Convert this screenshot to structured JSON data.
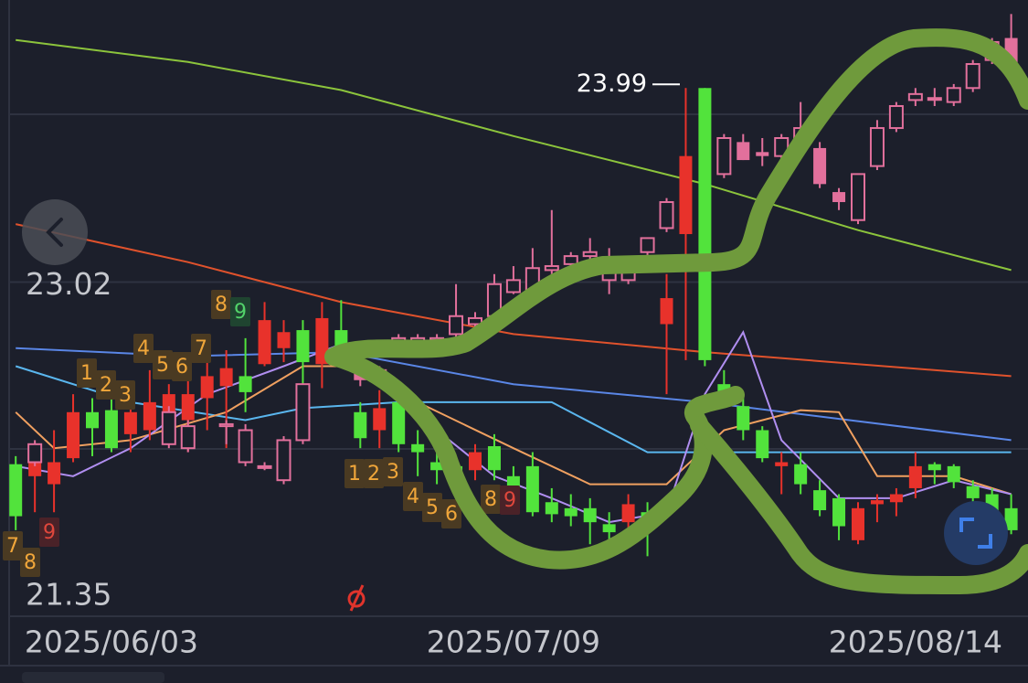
{
  "chart_data": {
    "type": "candlestick",
    "categories": [
      null,
      null,
      null,
      null,
      null,
      "2025/06/03",
      null,
      null,
      null,
      null,
      null,
      null,
      null,
      null,
      null,
      null,
      null,
      null,
      null,
      null,
      null,
      null,
      null,
      null,
      null,
      null,
      "2025/07/09",
      null,
      null,
      null,
      null,
      null,
      null,
      null,
      null,
      null,
      null,
      null,
      null,
      null,
      null,
      null,
      null,
      null,
      null,
      null,
      null,
      "2025/08/14",
      null,
      null,
      null,
      null,
      null
    ],
    "ylim": [
      21.35,
      24.43
    ],
    "yticks": [
      23.02,
      21.35
    ],
    "high_marker": 23.99,
    "series": [
      {
        "color_up": "#e8322b",
        "color_down": "#52e33c",
        "hollow_up": false,
        "ohlc": [
          [
            22.11,
            22.15,
            21.78,
            21.85
          ],
          [
            22.05,
            22.14,
            21.87,
            22.12
          ],
          [
            22.01,
            22.28,
            21.87,
            22.12
          ],
          [
            22.14,
            22.46,
            22.12,
            22.37
          ],
          [
            22.37,
            22.44,
            22.15,
            22.29
          ],
          [
            22.38,
            22.46,
            22.17,
            22.19
          ],
          [
            22.26,
            22.42,
            22.17,
            22.37
          ],
          [
            22.28,
            22.58,
            22.23,
            22.42
          ],
          [
            22.35,
            22.51,
            22.3,
            22.46
          ],
          [
            22.33,
            22.53,
            22.17,
            22.46
          ],
          [
            22.44,
            22.63,
            22.28,
            22.55
          ],
          [
            22.5,
            22.68,
            22.19,
            22.59
          ],
          [
            22.55,
            22.74,
            22.37,
            22.47
          ],
          [
            22.61,
            22.92,
            22.6,
            22.83
          ],
          [
            22.69,
            22.83,
            22.62,
            22.77
          ],
          [
            22.78,
            22.83,
            22.51,
            22.62
          ],
          [
            22.61,
            22.92,
            22.49,
            22.84
          ],
          [
            22.78,
            22.93,
            22.6,
            22.69
          ],
          [
            22.37,
            22.42,
            22.19,
            22.24
          ],
          [
            22.28,
            22.48,
            22.19,
            22.39
          ],
          [
            22.42,
            22.51,
            22.17,
            22.21
          ],
          [
            22.21,
            22.28,
            22.05,
            22.17
          ],
          [
            22.12,
            22.19,
            22.01,
            22.08
          ],
          [
            22.1,
            22.14,
            21.96,
            22.03
          ],
          [
            22.08,
            22.21,
            22.03,
            22.17
          ],
          [
            22.2,
            22.26,
            22.03,
            22.08
          ],
          [
            22.05,
            22.1,
            21.94,
            21.99
          ],
          [
            22.1,
            22.17,
            21.85,
            21.87
          ],
          [
            21.92,
            21.99,
            21.82,
            21.86
          ],
          [
            21.89,
            21.96,
            21.8,
            21.85
          ],
          [
            21.89,
            21.94,
            21.71,
            21.82
          ],
          [
            21.81,
            21.87,
            21.69,
            21.77
          ],
          [
            21.82,
            21.96,
            21.73,
            21.91
          ],
          [
            21.87,
            21.92,
            21.65,
            21.79
          ],
          [
            22.81,
            23.06,
            22.46,
            22.94
          ],
          [
            23.26,
            23.99,
            22.63,
            23.65
          ],
          [
            23.99,
            23.99,
            22.6,
            22.63
          ],
          [
            22.51,
            22.58,
            22.4,
            22.42
          ],
          [
            22.4,
            22.46,
            22.23,
            22.28
          ],
          [
            22.28,
            22.3,
            22.12,
            22.14
          ],
          [
            22.1,
            22.17,
            21.96,
            22.12
          ],
          [
            22.11,
            22.17,
            21.96,
            22.01
          ],
          [
            21.98,
            22.03,
            21.85,
            21.88
          ],
          [
            21.94,
            21.96,
            21.73,
            21.8
          ],
          [
            21.73,
            21.92,
            21.71,
            21.89
          ],
          [
            21.91,
            21.96,
            21.82,
            21.93
          ],
          [
            21.92,
            21.99,
            21.85,
            21.96
          ],
          [
            21.99,
            22.17,
            21.94,
            22.1
          ],
          [
            22.11,
            22.12,
            22.01,
            22.08
          ],
          [
            22.1,
            22.11,
            21.99,
            22.02
          ],
          [
            22.0,
            22.03,
            21.89,
            21.94
          ],
          [
            21.96,
            21.99,
            21.85,
            21.87
          ],
          [
            21.89,
            21.96,
            21.76,
            21.78
          ]
        ]
      },
      {
        "color_up": "#e2709c",
        "color_down": "#e2709c",
        "hollow_up": true,
        "ohlc": [
          null,
          [
            22.12,
            22.23,
            22.1,
            22.21
          ],
          null,
          null,
          null,
          null,
          null,
          null,
          [
            22.21,
            22.4,
            22.19,
            22.37
          ],
          [
            22.19,
            22.33,
            22.17,
            22.3
          ],
          null,
          [
            22.3,
            22.33,
            22.21,
            22.31
          ],
          [
            22.12,
            22.31,
            22.1,
            22.28
          ],
          [
            22.1,
            22.12,
            22.08,
            22.1
          ],
          [
            22.03,
            22.25,
            22.01,
            22.23
          ],
          [
            22.23,
            22.51,
            22.21,
            22.51
          ],
          null,
          null,
          [
            22.62,
            22.65,
            22.5,
            22.53
          ],
          [
            22.55,
            22.6,
            22.53,
            22.58
          ],
          [
            22.69,
            22.76,
            22.65,
            22.74
          ],
          [
            22.7,
            22.76,
            22.67,
            22.74
          ],
          [
            22.73,
            22.76,
            22.71,
            22.74
          ],
          [
            22.76,
            23.01,
            22.74,
            22.85
          ],
          [
            22.81,
            22.87,
            22.78,
            22.84
          ],
          [
            22.85,
            23.06,
            22.83,
            23.01
          ],
          [
            22.97,
            23.1,
            22.96,
            23.03
          ],
          [
            22.97,
            23.19,
            22.94,
            23.09
          ],
          [
            23.08,
            23.38,
            23.06,
            23.1
          ],
          [
            23.11,
            23.17,
            23.08,
            23.15
          ],
          [
            23.15,
            23.24,
            23.12,
            23.17
          ],
          [
            23.03,
            23.19,
            22.96,
            23.12
          ],
          [
            23.03,
            23.15,
            23.01,
            23.12
          ],
          [
            23.17,
            23.24,
            23.15,
            23.24
          ],
          [
            23.29,
            23.44,
            23.27,
            23.42
          ],
          null,
          null,
          [
            23.56,
            23.76,
            23.54,
            23.74
          ],
          [
            23.72,
            23.76,
            23.63,
            23.63
          ],
          [
            23.67,
            23.74,
            23.6,
            23.65
          ],
          [
            23.65,
            23.76,
            23.63,
            23.74
          ],
          [
            23.74,
            23.92,
            23.69,
            23.79
          ],
          [
            23.69,
            23.72,
            23.49,
            23.51
          ],
          [
            23.47,
            23.49,
            23.38,
            23.42
          ],
          [
            23.33,
            23.56,
            23.31,
            23.56
          ],
          [
            23.6,
            23.83,
            23.58,
            23.79
          ],
          [
            23.79,
            23.92,
            23.77,
            23.9
          ],
          [
            23.93,
            23.99,
            23.9,
            23.96
          ],
          [
            23.94,
            23.99,
            23.9,
            23.94
          ],
          [
            23.92,
            24.01,
            23.9,
            23.99
          ],
          [
            23.99,
            24.13,
            23.97,
            24.11
          ],
          [
            24.13,
            24.24,
            24.11,
            24.22
          ],
          [
            24.24,
            24.36,
            24.1,
            24.11
          ]
        ]
      }
    ],
    "lines": [
      {
        "color": "#8cc43c",
        "x": [
          0,
          9,
          17,
          26,
          36,
          44,
          52
        ],
        "values": [
          24.23,
          24.12,
          23.98,
          23.75,
          23.51,
          23.28,
          23.08
        ]
      },
      {
        "color": "#e0522c",
        "x": [
          0,
          9,
          17,
          26,
          36,
          52
        ],
        "values": [
          23.31,
          23.12,
          22.92,
          22.76,
          22.67,
          22.55
        ]
      },
      {
        "color": "#5a86e6",
        "x": [
          0,
          9,
          17,
          26,
          36,
          52
        ],
        "values": [
          22.69,
          22.65,
          22.67,
          22.51,
          22.42,
          22.23
        ]
      },
      {
        "color": "#5ab6ee",
        "x": [
          0,
          6,
          12,
          15,
          20,
          28,
          33,
          42,
          52
        ],
        "values": [
          22.6,
          22.42,
          22.33,
          22.39,
          22.42,
          22.42,
          22.17,
          22.17,
          22.17
        ]
      },
      {
        "color": "#f0a060",
        "x": [
          0,
          2,
          6,
          11,
          15,
          18,
          21,
          26,
          30,
          34,
          37,
          41,
          43,
          45,
          49,
          52
        ],
        "values": [
          22.37,
          22.19,
          22.23,
          22.37,
          22.6,
          22.6,
          22.42,
          22.19,
          22.01,
          22.01,
          22.28,
          22.38,
          22.37,
          22.05,
          22.05,
          21.96
        ]
      },
      {
        "color": "#b08ef0",
        "x": [
          0,
          3,
          6,
          10,
          14,
          17,
          19,
          22,
          25,
          28,
          31,
          34,
          36,
          38,
          40,
          43,
          46,
          49,
          52
        ],
        "values": [
          22.1,
          22.05,
          22.19,
          22.46,
          22.6,
          22.71,
          22.55,
          22.28,
          22.05,
          21.94,
          21.82,
          21.87,
          22.46,
          22.77,
          22.23,
          21.94,
          21.94,
          22.03,
          21.96
        ]
      }
    ],
    "sequence_labels": [
      8,
      9,
      4,
      5,
      6,
      7,
      1,
      2,
      3,
      1,
      2,
      3,
      4,
      5,
      6,
      8,
      9,
      7,
      8,
      9
    ]
  }
}
